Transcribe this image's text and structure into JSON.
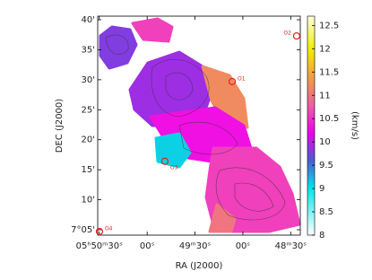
{
  "chart_data": {
    "type": "image",
    "x_label": "RA (J2000)",
    "y_label": "DEC (J2000)",
    "colorbar_label": "(km/s)",
    "xlim": [
      21031,
      20904
    ],
    "ylim": [
      4.1,
      40.6
    ],
    "xticks": [
      {
        "value": 21030,
        "label": "05ʰ50ᵐ30ˢ"
      },
      {
        "value": 21000,
        "label": "00ˢ"
      },
      {
        "value": 20970,
        "label": "49ᵐ30ˢ"
      },
      {
        "value": 20940,
        "label": "00ˢ"
      },
      {
        "value": 20910,
        "label": "48ᵐ30ˢ"
      }
    ],
    "yticks": [
      {
        "value": 5,
        "label": "7°05'"
      },
      {
        "value": 10,
        "label": "10'"
      },
      {
        "value": 15,
        "label": "15'"
      },
      {
        "value": 20,
        "label": "20'"
      },
      {
        "value": 25,
        "label": "25'"
      },
      {
        "value": 30,
        "label": "30'"
      },
      {
        "value": 35,
        "label": "35'"
      },
      {
        "value": 40,
        "label": "40'"
      }
    ],
    "clim": [
      8,
      12.7
    ],
    "cticks": [
      8,
      8.5,
      9,
      9.5,
      10,
      10.5,
      11,
      11.5,
      12,
      12.5
    ],
    "colormap": [
      {
        "value": 8,
        "color": "#ffffff"
      },
      {
        "value": 9,
        "color": "#00e8e8"
      },
      {
        "value": 9.6,
        "color": "#4a5cd8"
      },
      {
        "value": 10.2,
        "color": "#f000f0"
      },
      {
        "value": 10.8,
        "color": "#f060a0"
      },
      {
        "value": 11.4,
        "color": "#f0a040"
      },
      {
        "value": 12,
        "color": "#f0f000"
      },
      {
        "value": 12.7,
        "color": "#ffffe0"
      }
    ],
    "map_values": [
      9.8,
      10.6,
      9.9,
      11.2,
      10.3,
      9.1,
      10.6,
      11.0
    ],
    "markers": [
      {
        "label": "O1",
        "x": 20946.7,
        "y": 29.7
      },
      {
        "label": "O2",
        "x": 20906.3,
        "y": 37.3
      },
      {
        "label": "O3",
        "x": 20988.9,
        "y": 16.4
      },
      {
        "label": "O4",
        "x": 21029.9,
        "y": 4.7
      }
    ],
    "marker_color": "#e02020"
  }
}
